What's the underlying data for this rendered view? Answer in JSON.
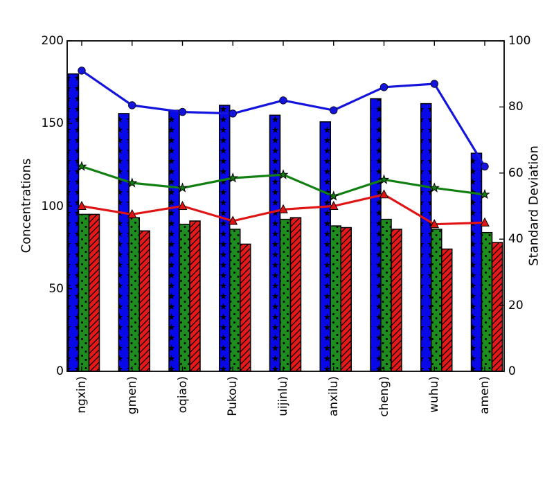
{
  "figure": {
    "background_color": "#ffffff",
    "frame_color": "#000000",
    "title": ""
  },
  "left_axis": {
    "label": "Concentrations",
    "tick_labels": [
      "0",
      "50",
      "100",
      "150",
      "200"
    ]
  },
  "right_axis": {
    "label": "Standard Deviation",
    "tick_labels": [
      "0",
      "20",
      "40",
      "60",
      "80",
      "100"
    ]
  },
  "x_axis": {
    "tick_labels": [
      "ngxin)",
      "gmen)",
      "oqiao)",
      "Pukou)",
      "uijinlu)",
      "anxilu)",
      "cheng)",
      "wuhu)",
      "amen)"
    ]
  },
  "chart_data": {
    "type": "bar",
    "categories": [
      "ngxin)",
      "gmen)",
      "oqiao)",
      "Pukou)",
      "uijinlu)",
      "anxilu)",
      "cheng)",
      "wuhu)",
      "amen)"
    ],
    "title": "",
    "xlabel": "",
    "ylabel_left": "Concentrations",
    "ylabel_right": "Standard Deviation",
    "ylim_left": [
      0,
      200
    ],
    "ylim_right": [
      0,
      100
    ],
    "yticks_left": [
      0,
      50,
      100,
      150,
      200
    ],
    "yticks_right": [
      0,
      20,
      40,
      60,
      80,
      100
    ],
    "grid": false,
    "legend": "none",
    "bar_series": [
      {
        "name": "blue-bars",
        "axis": "left",
        "color": "#0808E8",
        "hatch": "star",
        "values": [
          180,
          156,
          158,
          161,
          155,
          151,
          165,
          162,
          132
        ]
      },
      {
        "name": "green-bars",
        "axis": "left",
        "color": "#1E8C1E",
        "hatch": "dot",
        "values": [
          95,
          93,
          89,
          86,
          92,
          88,
          92,
          86,
          84
        ]
      },
      {
        "name": "red-bars",
        "axis": "left",
        "color": "#E51919",
        "hatch": "diagonal",
        "values": [
          95,
          85,
          91,
          77,
          93,
          87,
          86,
          74,
          78
        ]
      }
    ],
    "line_series": [
      {
        "name": "blue-line",
        "axis": "right",
        "color": "#1414DC",
        "marker": "circle",
        "values": [
          91,
          80.5,
          78.5,
          78,
          82,
          79,
          86,
          87,
          62
        ]
      },
      {
        "name": "green-line",
        "axis": "right",
        "color": "#118011",
        "marker": "star",
        "values": [
          62,
          57,
          55.5,
          58.5,
          59.5,
          53,
          58,
          55.5,
          53.5
        ]
      },
      {
        "name": "red-line",
        "axis": "right",
        "color": "#E01414",
        "marker": "triangle",
        "values": [
          50,
          47.5,
          50,
          45.5,
          49,
          50,
          53.5,
          44.5,
          45
        ]
      }
    ]
  }
}
